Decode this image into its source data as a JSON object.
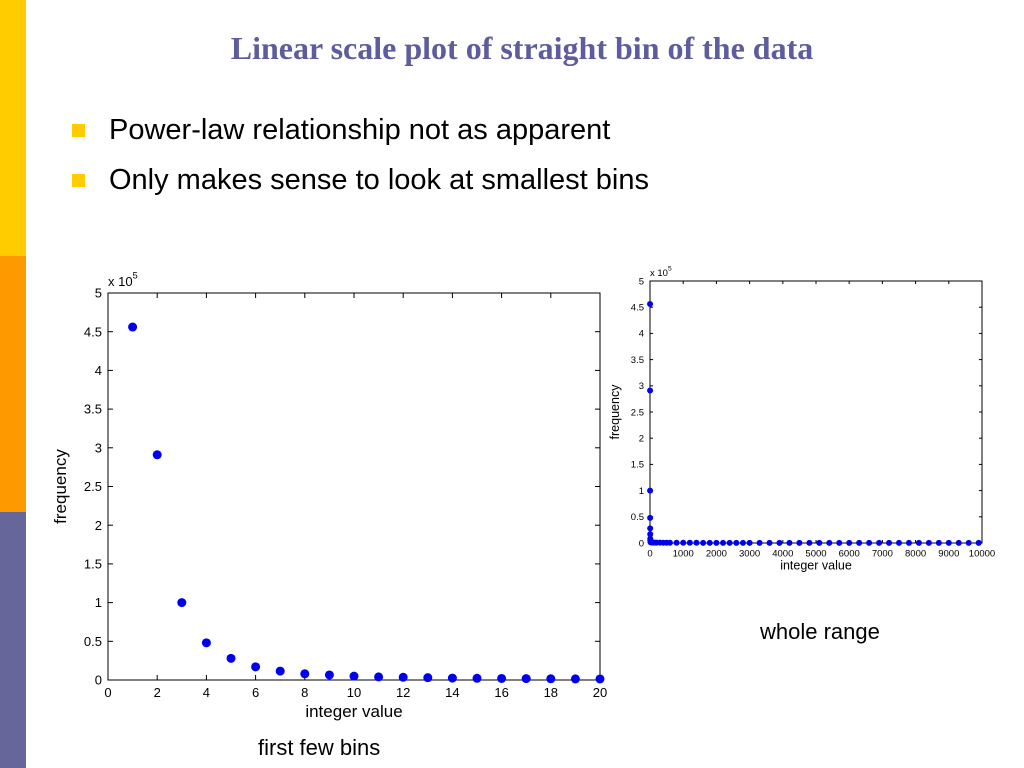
{
  "colors": {
    "title": "#5C5C9E",
    "bullet_marker": "#FFCC00",
    "side_bar": [
      "#FFCC00",
      "#FF9900",
      "#66669A"
    ],
    "marker": "#0000EE",
    "axis": "#000000"
  },
  "slide": {
    "title": "Linear scale plot of straight bin of the data",
    "bullets": [
      "Power-law relationship not as apparent",
      "Only makes sense to look at smallest bins"
    ]
  },
  "captions": {
    "left": "first few bins",
    "right": "whole range"
  },
  "chart_data": [
    {
      "type": "scatter",
      "xlabel": "integer value",
      "ylabel": "frequency",
      "xlim": [
        0,
        20
      ],
      "ylim": [
        0,
        5
      ],
      "y_multiplier_label": {
        "prefix": "x 10",
        "exponent": "5"
      },
      "xticks": [
        "0",
        "2",
        "4",
        "6",
        "8",
        "10",
        "12",
        "14",
        "16",
        "18",
        "20"
      ],
      "yticks": [
        "0",
        "0.5",
        "1",
        "1.5",
        "2",
        "2.5",
        "3",
        "3.5",
        "4",
        "4.5",
        "5"
      ],
      "grid": false,
      "series": [
        {
          "x": [
            1,
            2,
            3,
            4,
            5,
            6,
            7,
            8,
            9,
            10,
            11,
            12,
            13,
            14,
            15,
            16,
            17,
            18,
            19,
            20
          ],
          "y": [
            4.56,
            2.91,
            1.0,
            0.48,
            0.28,
            0.17,
            0.115,
            0.08,
            0.065,
            0.05,
            0.04,
            0.035,
            0.03,
            0.025,
            0.022,
            0.02,
            0.018,
            0.016,
            0.014,
            0.013
          ]
        }
      ]
    },
    {
      "type": "scatter",
      "xlabel": "integer value",
      "ylabel": "frequency",
      "xlim": [
        0,
        10000
      ],
      "ylim": [
        0,
        5
      ],
      "y_multiplier_label": {
        "prefix": "x 10",
        "exponent": "5"
      },
      "xticks": [
        "0",
        "1000",
        "2000",
        "3000",
        "4000",
        "5000",
        "6000",
        "7000",
        "8000",
        "9000",
        "10000"
      ],
      "yticks": [
        "0",
        "0.5",
        "1",
        "1.5",
        "2",
        "2.5",
        "3",
        "3.5",
        "4",
        "4.5",
        "5"
      ],
      "grid": false,
      "series": [
        {
          "x": [
            1,
            2,
            3,
            4,
            5,
            6,
            8,
            10,
            15,
            20,
            40,
            60,
            100,
            150,
            200,
            300,
            400,
            500,
            600,
            800,
            1000,
            1200,
            1400,
            1600,
            1800,
            2000,
            2200,
            2400,
            2600,
            2800,
            3000,
            3300,
            3600,
            3900,
            4200,
            4500,
            4800,
            5100,
            5400,
            5700,
            6000,
            6300,
            6600,
            6900,
            7200,
            7500,
            7800,
            8100,
            8400,
            8700,
            9000,
            9300,
            9600,
            9900
          ],
          "y": [
            4.56,
            2.91,
            1.0,
            0.48,
            0.28,
            0.17,
            0.08,
            0.05,
            0.025,
            0.013,
            0.01,
            0.009,
            0.008,
            0.007,
            0.006,
            0.006,
            0.005,
            0.005,
            0.005,
            0.004,
            0.004,
            0.004,
            0.004,
            0.003,
            0.003,
            0.003,
            0.003,
            0.003,
            0.003,
            0.003,
            0.003,
            0.002,
            0.002,
            0.002,
            0.002,
            0.002,
            0.002,
            0.002,
            0.002,
            0.002,
            0.002,
            0.002,
            0.002,
            0.002,
            0.002,
            0.002,
            0.002,
            0.002,
            0.002,
            0.002,
            0.002,
            0.002,
            0.002,
            0.002
          ]
        }
      ]
    }
  ]
}
